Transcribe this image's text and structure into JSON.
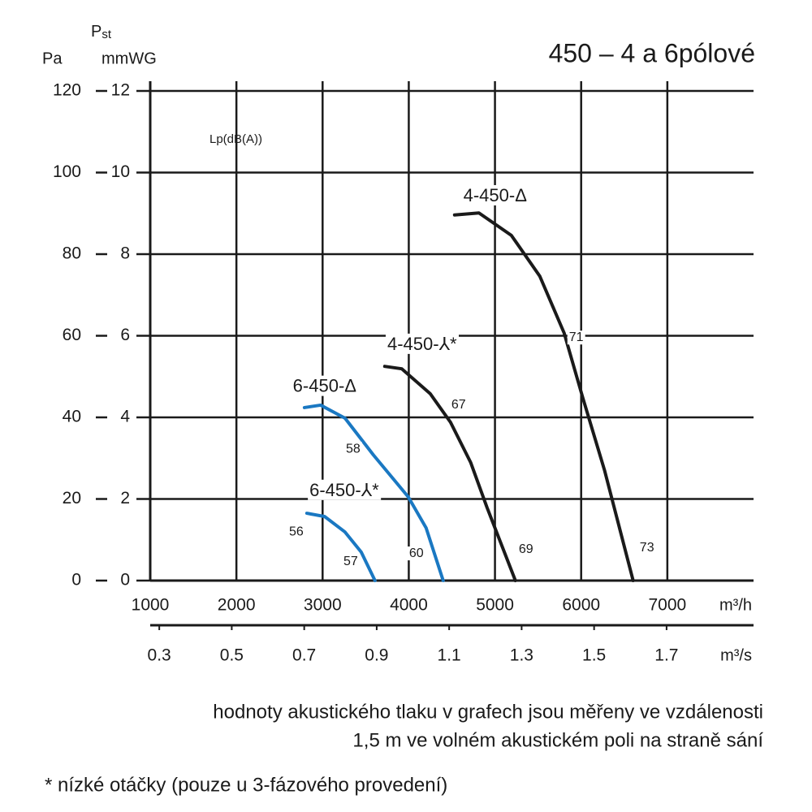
{
  "chart_data": {
    "type": "line",
    "title": "450 – 4 a 6pólové",
    "y_label": "P",
    "y_label_subscript": "st",
    "y_unit": "mmWG",
    "y2_unit": "Pa",
    "x_unit": "m³/h",
    "x2_unit": "m³/s",
    "inner_label": "Lp(dB(A))",
    "xlim": [
      1000,
      8000
    ],
    "xticks": [
      1000,
      2000,
      3000,
      4000,
      5000,
      6000,
      7000
    ],
    "x2lim": [
      0.275,
      1.94
    ],
    "x2ticks": [
      0.3,
      0.5,
      0.7,
      0.9,
      1.1,
      1.3,
      1.5,
      1.7
    ],
    "ylim": [
      0,
      12
    ],
    "yticks": [
      0,
      2,
      4,
      6,
      8,
      10,
      12
    ],
    "y2lim": [
      0,
      120
    ],
    "y2ticks": [
      0,
      20,
      40,
      60,
      80,
      100,
      120
    ],
    "grid": true,
    "series": [
      {
        "name": "6-450-⅄*",
        "color": "#1a78c2",
        "label_at": [
          3251,
          2.19
        ],
        "x": [
          2817,
          3024,
          3260,
          3448,
          3608
        ],
        "values": [
          1.65,
          1.57,
          1.19,
          0.7,
          0
        ]
      },
      {
        "name": "6-450-Δ",
        "color": "#1a78c2",
        "label_at": [
          3024,
          4.74
        ],
        "x": [
          2789,
          2977,
          3260,
          3589,
          3994,
          4201,
          4399
        ],
        "values": [
          4.24,
          4.3,
          3.98,
          3.08,
          2.05,
          1.29,
          0
        ]
      },
      {
        "name": "4-450-⅄*",
        "color": "#1a1a1a",
        "label_at": [
          4154,
          5.77
        ],
        "x": [
          3721,
          3919,
          4249,
          4484,
          4719,
          4908,
          5237
        ],
        "values": [
          5.25,
          5.19,
          4.58,
          3.88,
          2.89,
          1.79,
          0
        ]
      },
      {
        "name": "4-450-Δ",
        "color": "#1a1a1a",
        "label_at": [
          5002,
          9.41
        ],
        "x": [
          4531,
          4814,
          5190,
          5520,
          5802,
          6019,
          6273,
          6603
        ],
        "values": [
          8.96,
          9.01,
          8.46,
          7.46,
          6.07,
          4.48,
          2.69,
          0
        ]
      }
    ],
    "annotations": [
      {
        "text": 56,
        "x": 2695,
        "y": 1.19
      },
      {
        "text": 57,
        "x": 3326,
        "y": 0.46
      },
      {
        "text": 58,
        "x": 3354,
        "y": 3.22
      },
      {
        "text": 60,
        "x": 4088,
        "y": 0.66
      },
      {
        "text": 67,
        "x": 4578,
        "y": 4.3
      },
      {
        "text": 69,
        "x": 5360,
        "y": 0.76
      },
      {
        "text": 71,
        "x": 5943,
        "y": 5.95
      },
      {
        "text": 73,
        "x": 6763,
        "y": 0.8
      }
    ],
    "notes": [
      "hodnoty akustického tlaku v grafech jsou měřeny ve vzdálenosti",
      "1,5 m ve volném akustickém poli na straně sání",
      "* nízké otáčky (pouze u 3-fázového provedení)"
    ]
  }
}
